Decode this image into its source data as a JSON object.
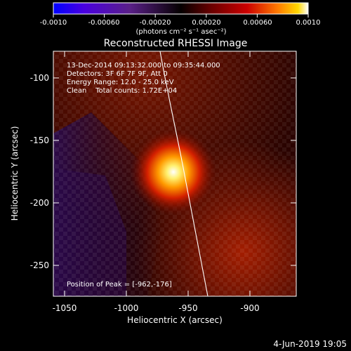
{
  "colorbar": {
    "ticks": [
      "-0.0010",
      "-0.00060",
      "-0.00020",
      "0.00020",
      "0.00060",
      "0.0010"
    ],
    "units": "(photons cm⁻² s⁻¹ asec⁻²)"
  },
  "plot": {
    "title": "Reconstructed RHESSI Image",
    "xlabel": "Heliocentric X (arcsec)",
    "ylabel": "Heliocentric Y (arcsec)",
    "xticks": [
      "-1050",
      "-1000",
      "-950",
      "-900"
    ],
    "yticks": [
      "-100",
      "-150",
      "-200",
      "-250"
    ]
  },
  "info": {
    "time_range": "13-Dec-2014 09:13:32.000 to 09:35:44.000",
    "detectors": "Detectors: 3F 6F 7F 9F, Att 0",
    "energy": "Energy Range: 12.0 - 25.0 keV",
    "clean": "Clean    Total counts: 1.72E+04",
    "peak": "Position of Peak = [-962,-176]"
  },
  "footer": {
    "date": "4-Jun-2019 19:05"
  },
  "colors": {
    "bg": "#000000",
    "text": "#ffffff",
    "limb": "#ffffff"
  }
}
